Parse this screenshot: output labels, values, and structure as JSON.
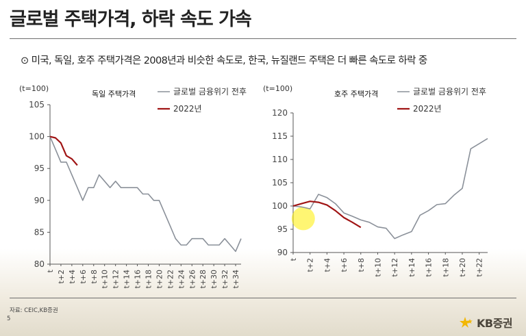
{
  "title": "글로벌 주택가격, 하락 속도 가속",
  "subtitle": {
    "bullet": "⊙",
    "text": "미국, 독일, 호주 주택가격은 2008년과 비슷한 속도로, 한국, 뉴질랜드 주택은 더 빠른 속도로 하락 중"
  },
  "source": "자료: CEIC,KB증권",
  "page_number": "5",
  "logo": {
    "text": "KB증권",
    "icon": "kb-star-icon",
    "color": "#f2b705"
  },
  "colors": {
    "gfc": "#8a9099",
    "y2022": "#a01414",
    "highlight": "#ffee00"
  },
  "chart_data": [
    {
      "type": "line",
      "title": "독일 주택가격",
      "unit": "(t=100)",
      "ylim": [
        80,
        105
      ],
      "yticks": [
        80,
        85,
        90,
        95,
        100,
        105
      ],
      "xticks": [
        "t",
        "t+2",
        "t+4",
        "t+6",
        "t+8",
        "t+10",
        "t+12",
        "t+14",
        "t+16",
        "t+18",
        "t+20",
        "t+22",
        "t+24",
        "t+26",
        "t+28",
        "t+30",
        "t+32",
        "t+34"
      ],
      "xlim": [
        0,
        35
      ],
      "series": [
        {
          "name": "글로벌 금융위기 전후",
          "x": [
            0,
            1,
            2,
            3,
            4,
            5,
            6,
            7,
            8,
            9,
            10,
            11,
            12,
            13,
            14,
            15,
            16,
            17,
            18,
            19,
            20,
            21,
            22,
            23,
            24,
            25,
            26,
            27,
            28,
            29,
            30,
            31,
            32,
            33,
            34,
            35
          ],
          "values": [
            100,
            98,
            96,
            96,
            94,
            92,
            90,
            92,
            92,
            94,
            93,
            92,
            93,
            92,
            92,
            92,
            92,
            91,
            91,
            90,
            90,
            88,
            86,
            84,
            83,
            83,
            84,
            84,
            84,
            83,
            83,
            83,
            84,
            83,
            82,
            84
          ]
        },
        {
          "name": "2022년",
          "x": [
            0,
            1,
            2,
            3,
            4,
            5
          ],
          "values": [
            100,
            99.8,
            99,
            97,
            96.5,
            95.5
          ]
        }
      ]
    },
    {
      "type": "line",
      "title": "호주 주택가격",
      "unit": "(t=100)",
      "ylim": [
        90,
        120
      ],
      "yticks": [
        90,
        95,
        100,
        105,
        110,
        115,
        120
      ],
      "xticks": [
        "t",
        "t+2",
        "t+4",
        "t+6",
        "t+8",
        "t+10",
        "t+12",
        "t+14",
        "t+16",
        "t+18",
        "t+20",
        "t+22"
      ],
      "xlim": [
        0,
        23
      ],
      "series": [
        {
          "name": "글로벌 금융위기 전후",
          "x": [
            0,
            1,
            2,
            3,
            4,
            5,
            6,
            7,
            8,
            9,
            10,
            11,
            12,
            13,
            14,
            15,
            16,
            17,
            18,
            19,
            20,
            21,
            22,
            23
          ],
          "values": [
            100,
            99.8,
            99.4,
            102.5,
            101.8,
            100.5,
            98.5,
            97.8,
            97,
            96.5,
            95.5,
            95.2,
            93,
            93.8,
            94.5,
            98,
            99,
            100.3,
            100.5,
            102.3,
            103.8,
            112.3,
            113.4,
            114.5
          ]
        },
        {
          "name": "2022년",
          "x": [
            0,
            1,
            2,
            3,
            4,
            5,
            6,
            7,
            8
          ],
          "values": [
            100,
            100.5,
            101,
            100.8,
            100.2,
            99,
            97.5,
            96.5,
            95.4
          ]
        }
      ]
    }
  ]
}
